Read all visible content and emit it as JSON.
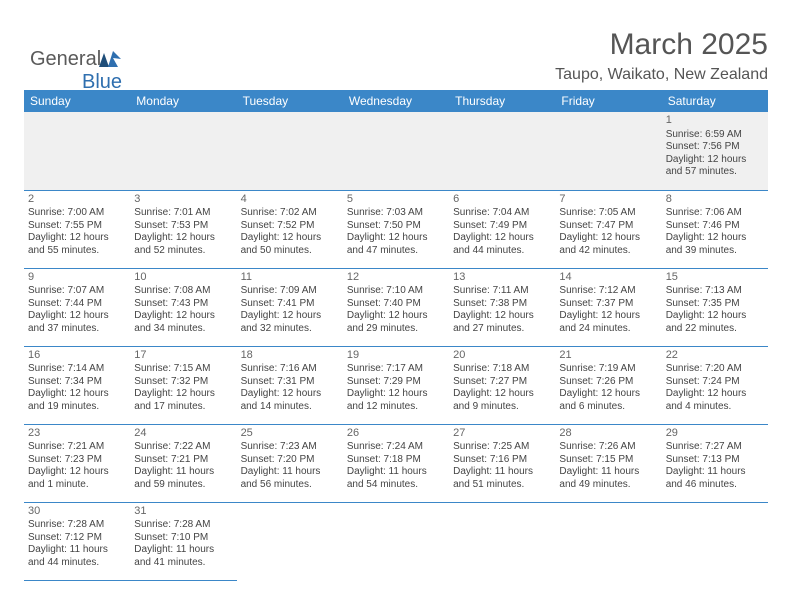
{
  "brand": {
    "part1": "General",
    "part2": "Blue"
  },
  "title": "March 2025",
  "subtitle": "Taupo, Waikato, New Zealand",
  "colors": {
    "header_bg": "#3B87C8",
    "header_text": "#ffffff",
    "border": "#3B87C8",
    "text": "#444444",
    "title_text": "#555555",
    "empty_bg": "#f0f0f0",
    "brand_accent": "#2F6FAF"
  },
  "typography": {
    "title_fontsize": 30,
    "subtitle_fontsize": 16,
    "dayheader_fontsize": 12,
    "cell_fontsize": 10
  },
  "day_headers": [
    "Sunday",
    "Monday",
    "Tuesday",
    "Wednesday",
    "Thursday",
    "Friday",
    "Saturday"
  ],
  "weeks": [
    [
      {
        "blank": true
      },
      {
        "blank": true
      },
      {
        "blank": true
      },
      {
        "blank": true
      },
      {
        "blank": true
      },
      {
        "blank": true
      },
      {
        "day": "1",
        "sunrise": "Sunrise: 6:59 AM",
        "sunset": "Sunset: 7:56 PM",
        "daylight": "Daylight: 12 hours and 57 minutes."
      }
    ],
    [
      {
        "day": "2",
        "sunrise": "Sunrise: 7:00 AM",
        "sunset": "Sunset: 7:55 PM",
        "daylight": "Daylight: 12 hours and 55 minutes."
      },
      {
        "day": "3",
        "sunrise": "Sunrise: 7:01 AM",
        "sunset": "Sunset: 7:53 PM",
        "daylight": "Daylight: 12 hours and 52 minutes."
      },
      {
        "day": "4",
        "sunrise": "Sunrise: 7:02 AM",
        "sunset": "Sunset: 7:52 PM",
        "daylight": "Daylight: 12 hours and 50 minutes."
      },
      {
        "day": "5",
        "sunrise": "Sunrise: 7:03 AM",
        "sunset": "Sunset: 7:50 PM",
        "daylight": "Daylight: 12 hours and 47 minutes."
      },
      {
        "day": "6",
        "sunrise": "Sunrise: 7:04 AM",
        "sunset": "Sunset: 7:49 PM",
        "daylight": "Daylight: 12 hours and 44 minutes."
      },
      {
        "day": "7",
        "sunrise": "Sunrise: 7:05 AM",
        "sunset": "Sunset: 7:47 PM",
        "daylight": "Daylight: 12 hours and 42 minutes."
      },
      {
        "day": "8",
        "sunrise": "Sunrise: 7:06 AM",
        "sunset": "Sunset: 7:46 PM",
        "daylight": "Daylight: 12 hours and 39 minutes."
      }
    ],
    [
      {
        "day": "9",
        "sunrise": "Sunrise: 7:07 AM",
        "sunset": "Sunset: 7:44 PM",
        "daylight": "Daylight: 12 hours and 37 minutes."
      },
      {
        "day": "10",
        "sunrise": "Sunrise: 7:08 AM",
        "sunset": "Sunset: 7:43 PM",
        "daylight": "Daylight: 12 hours and 34 minutes."
      },
      {
        "day": "11",
        "sunrise": "Sunrise: 7:09 AM",
        "sunset": "Sunset: 7:41 PM",
        "daylight": "Daylight: 12 hours and 32 minutes."
      },
      {
        "day": "12",
        "sunrise": "Sunrise: 7:10 AM",
        "sunset": "Sunset: 7:40 PM",
        "daylight": "Daylight: 12 hours and 29 minutes."
      },
      {
        "day": "13",
        "sunrise": "Sunrise: 7:11 AM",
        "sunset": "Sunset: 7:38 PM",
        "daylight": "Daylight: 12 hours and 27 minutes."
      },
      {
        "day": "14",
        "sunrise": "Sunrise: 7:12 AM",
        "sunset": "Sunset: 7:37 PM",
        "daylight": "Daylight: 12 hours and 24 minutes."
      },
      {
        "day": "15",
        "sunrise": "Sunrise: 7:13 AM",
        "sunset": "Sunset: 7:35 PM",
        "daylight": "Daylight: 12 hours and 22 minutes."
      }
    ],
    [
      {
        "day": "16",
        "sunrise": "Sunrise: 7:14 AM",
        "sunset": "Sunset: 7:34 PM",
        "daylight": "Daylight: 12 hours and 19 minutes."
      },
      {
        "day": "17",
        "sunrise": "Sunrise: 7:15 AM",
        "sunset": "Sunset: 7:32 PM",
        "daylight": "Daylight: 12 hours and 17 minutes."
      },
      {
        "day": "18",
        "sunrise": "Sunrise: 7:16 AM",
        "sunset": "Sunset: 7:31 PM",
        "daylight": "Daylight: 12 hours and 14 minutes."
      },
      {
        "day": "19",
        "sunrise": "Sunrise: 7:17 AM",
        "sunset": "Sunset: 7:29 PM",
        "daylight": "Daylight: 12 hours and 12 minutes."
      },
      {
        "day": "20",
        "sunrise": "Sunrise: 7:18 AM",
        "sunset": "Sunset: 7:27 PM",
        "daylight": "Daylight: 12 hours and 9 minutes."
      },
      {
        "day": "21",
        "sunrise": "Sunrise: 7:19 AM",
        "sunset": "Sunset: 7:26 PM",
        "daylight": "Daylight: 12 hours and 6 minutes."
      },
      {
        "day": "22",
        "sunrise": "Sunrise: 7:20 AM",
        "sunset": "Sunset: 7:24 PM",
        "daylight": "Daylight: 12 hours and 4 minutes."
      }
    ],
    [
      {
        "day": "23",
        "sunrise": "Sunrise: 7:21 AM",
        "sunset": "Sunset: 7:23 PM",
        "daylight": "Daylight: 12 hours and 1 minute."
      },
      {
        "day": "24",
        "sunrise": "Sunrise: 7:22 AM",
        "sunset": "Sunset: 7:21 PM",
        "daylight": "Daylight: 11 hours and 59 minutes."
      },
      {
        "day": "25",
        "sunrise": "Sunrise: 7:23 AM",
        "sunset": "Sunset: 7:20 PM",
        "daylight": "Daylight: 11 hours and 56 minutes."
      },
      {
        "day": "26",
        "sunrise": "Sunrise: 7:24 AM",
        "sunset": "Sunset: 7:18 PM",
        "daylight": "Daylight: 11 hours and 54 minutes."
      },
      {
        "day": "27",
        "sunrise": "Sunrise: 7:25 AM",
        "sunset": "Sunset: 7:16 PM",
        "daylight": "Daylight: 11 hours and 51 minutes."
      },
      {
        "day": "28",
        "sunrise": "Sunrise: 7:26 AM",
        "sunset": "Sunset: 7:15 PM",
        "daylight": "Daylight: 11 hours and 49 minutes."
      },
      {
        "day": "29",
        "sunrise": "Sunrise: 7:27 AM",
        "sunset": "Sunset: 7:13 PM",
        "daylight": "Daylight: 11 hours and 46 minutes."
      }
    ],
    [
      {
        "day": "30",
        "sunrise": "Sunrise: 7:28 AM",
        "sunset": "Sunset: 7:12 PM",
        "daylight": "Daylight: 11 hours and 44 minutes."
      },
      {
        "day": "31",
        "sunrise": "Sunrise: 7:28 AM",
        "sunset": "Sunset: 7:10 PM",
        "daylight": "Daylight: 11 hours and 41 minutes."
      },
      {
        "blank": true,
        "trailing": true
      },
      {
        "blank": true,
        "trailing": true
      },
      {
        "blank": true,
        "trailing": true
      },
      {
        "blank": true,
        "trailing": true
      },
      {
        "blank": true,
        "trailing": true
      }
    ]
  ]
}
